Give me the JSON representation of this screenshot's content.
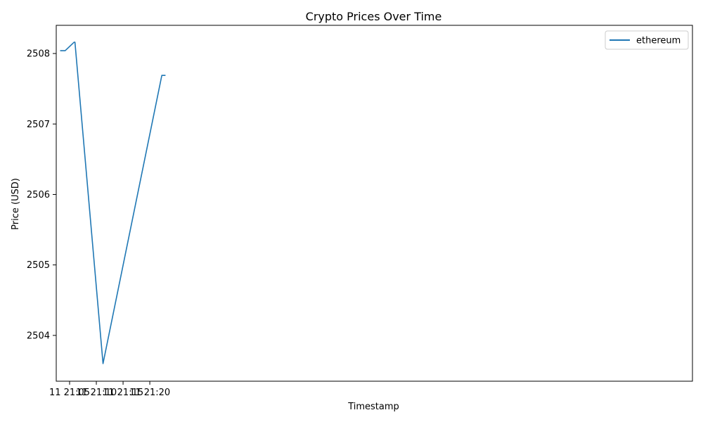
{
  "chart_data": {
    "type": "line",
    "title": "Crypto Prices Over Time",
    "xlabel": "Timestamp",
    "ylabel": "Price (USD)",
    "x_ticks": [
      "11 21:05",
      "11 21:10",
      "11 21:15",
      "11 21:20"
    ],
    "y_ticks": [
      2504,
      2505,
      2506,
      2507,
      2508
    ],
    "xlim": [
      "21:02.5",
      "23:1.5"
    ],
    "ylim": [
      2503.35,
      2508.4
    ],
    "grid": false,
    "legend_position": "top-right",
    "series": [
      {
        "name": "ethereum",
        "color": "#1f77b4",
        "x": [
          "21:03:20",
          "21:04:10",
          "21:05:50",
          "21:06:00",
          "21:11:15",
          "21:22:15",
          "21:22:50"
        ],
        "y": [
          2508.04,
          2508.04,
          2508.16,
          2508.16,
          2503.6,
          2507.69,
          2507.69
        ]
      }
    ]
  }
}
